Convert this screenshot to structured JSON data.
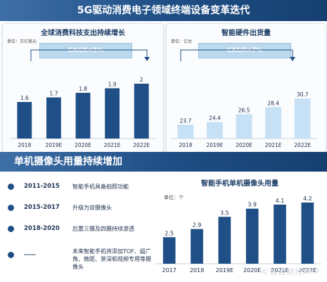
{
  "header": {
    "title": "5G驱动消费电子领域终端设备变革迭代"
  },
  "section2": {
    "title": "单机摄像头用量持续增加"
  },
  "left_panel": {
    "title": "全球消费科技支出持续增长",
    "unit": "单位：万亿美元",
    "cagr": "CAGR=5%"
  },
  "right_panel": {
    "title": "智能硬件出货量",
    "unit": "单位：亿台",
    "cagr": "CAGR=7%"
  },
  "bottom_chart": {
    "title": "智能手机单机摄像头用量",
    "unit": "单位：个"
  },
  "timeline": [
    {
      "period": "2011-2015",
      "text": "智能手机具备拍照功能"
    },
    {
      "period": "2015-2017",
      "text": "升级为双摄像头"
    },
    {
      "period": "2018-2020",
      "text": "后置三摄及四摄持续渗透"
    },
    {
      "period": "……",
      "text": "未来智能手机将添加TOF、超广角、微距、景深和视频专用等摄像头"
    }
  ],
  "watermark": "©智通财经APP",
  "colors": {
    "dark_bar": "#1f4f86",
    "light_bar": "#c6e1f5",
    "banner": "#1f4f86"
  },
  "chart_data": [
    {
      "type": "bar",
      "title": "全球消费科技支出持续增长",
      "unit": "万亿美元",
      "categories": [
        "2018",
        "2019E",
        "2020E",
        "2021E",
        "2022E"
      ],
      "values": [
        1.6,
        1.7,
        1.8,
        1.9,
        2.0
      ],
      "annotation": "CAGR=5%"
    },
    {
      "type": "bar",
      "title": "智能硬件出货量",
      "unit": "亿台",
      "categories": [
        "2018",
        "2019E",
        "2020E",
        "2021E",
        "2022E"
      ],
      "values": [
        23.7,
        24.4,
        26.5,
        28.4,
        30.7
      ],
      "annotation": "CAGR=7%"
    },
    {
      "type": "bar",
      "title": "智能手机单机摄像头用量",
      "unit": "个",
      "categories": [
        "2017",
        "2018",
        "2019E",
        "2020E",
        "2021E",
        "2022E"
      ],
      "values": [
        2.5,
        2.9,
        3.5,
        3.9,
        4.1,
        4.2
      ]
    }
  ]
}
